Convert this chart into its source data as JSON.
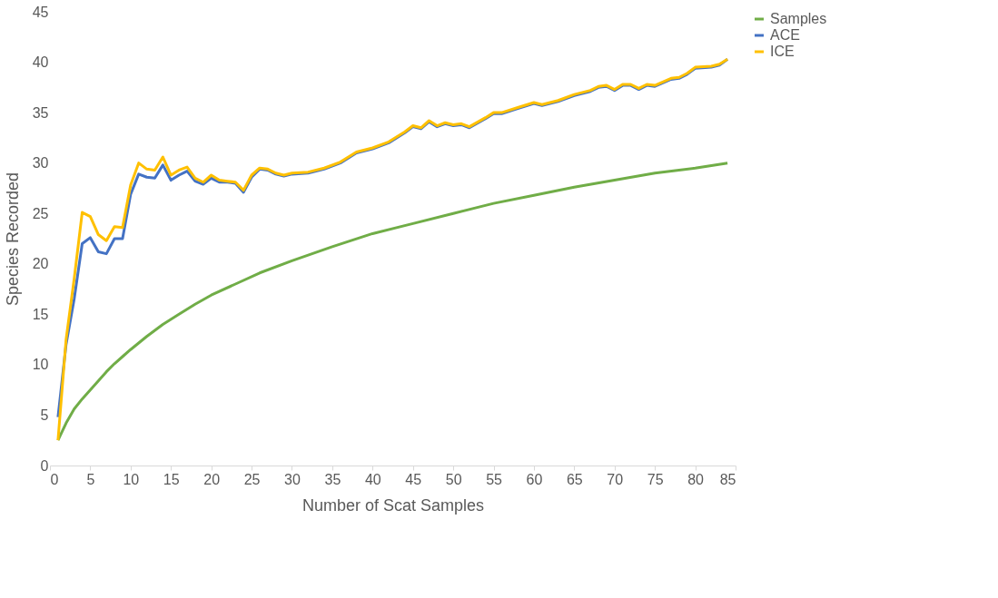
{
  "chart_data": {
    "type": "line",
    "xlabel": "Number of Scat Samples",
    "ylabel": "Species Recorded",
    "xlim": [
      0,
      85
    ],
    "ylim": [
      0,
      45
    ],
    "xticks": [
      0,
      5,
      10,
      15,
      20,
      25,
      30,
      35,
      40,
      45,
      50,
      55,
      60,
      65,
      70,
      75,
      80,
      85
    ],
    "yticks": [
      0,
      5,
      10,
      15,
      20,
      25,
      30,
      35,
      40,
      45
    ],
    "grid": false,
    "legend": "right",
    "marker": "none",
    "line_style": "solid",
    "series": [
      {
        "name": "Samples",
        "color": "#70ad47",
        "x": [
          1,
          2,
          3,
          4,
          5,
          6,
          7,
          8,
          9,
          10,
          12,
          14,
          16,
          18,
          20,
          23,
          26,
          30,
          35,
          40,
          45,
          50,
          55,
          60,
          65,
          70,
          75,
          80,
          84
        ],
        "values": [
          2.5,
          4.2,
          5.6,
          6.6,
          7.5,
          8.4,
          9.3,
          10.1,
          10.8,
          11.5,
          12.8,
          14.0,
          15.0,
          16.0,
          16.9,
          18.0,
          19.1,
          20.3,
          21.7,
          23.0,
          24.0,
          25.0,
          26.0,
          26.8,
          27.6,
          28.3,
          29.0,
          29.5,
          30.0
        ]
      },
      {
        "name": "ACE",
        "color": "#4472c4",
        "x": [
          1,
          2,
          3,
          4,
          5,
          6,
          7,
          8,
          9,
          10,
          11,
          12,
          13,
          14,
          15,
          16,
          17,
          18,
          19,
          20,
          21,
          22,
          23,
          24,
          25,
          26,
          27,
          28,
          29,
          30,
          32,
          34,
          36,
          38,
          40,
          42,
          44,
          45,
          46,
          47,
          48,
          49,
          50,
          51,
          52,
          54,
          55,
          56,
          58,
          60,
          61,
          63,
          65,
          67,
          68,
          69,
          70,
          71,
          72,
          73,
          74,
          75,
          77,
          78,
          79,
          80,
          82,
          83,
          84
        ],
        "values": [
          4.8,
          12.0,
          16.5,
          22.0,
          22.6,
          21.2,
          21.0,
          22.5,
          22.5,
          26.9,
          28.9,
          28.6,
          28.5,
          29.8,
          28.3,
          28.8,
          29.2,
          28.2,
          27.9,
          28.5,
          28.1,
          28.1,
          28.0,
          27.1,
          28.6,
          29.4,
          29.3,
          28.9,
          28.7,
          28.9,
          29.0,
          29.4,
          30.0,
          31.0,
          31.4,
          32.0,
          33.0,
          33.6,
          33.4,
          34.1,
          33.6,
          33.9,
          33.7,
          33.8,
          33.5,
          34.4,
          34.9,
          34.9,
          35.4,
          35.9,
          35.7,
          36.1,
          36.7,
          37.1,
          37.5,
          37.6,
          37.2,
          37.7,
          37.7,
          37.3,
          37.7,
          37.6,
          38.3,
          38.4,
          38.8,
          39.4,
          39.5,
          39.7,
          40.3
        ]
      },
      {
        "name": "ICE",
        "color": "#ffc000",
        "x": [
          1,
          2,
          3,
          4,
          5,
          6,
          7,
          8,
          9,
          10,
          11,
          12,
          13,
          14,
          15,
          16,
          17,
          18,
          19,
          20,
          21,
          22,
          23,
          24,
          25,
          26,
          27,
          28,
          29,
          30,
          32,
          34,
          36,
          38,
          40,
          42,
          44,
          45,
          46,
          47,
          48,
          49,
          50,
          51,
          52,
          54,
          55,
          56,
          58,
          60,
          61,
          63,
          65,
          67,
          68,
          69,
          70,
          71,
          72,
          73,
          74,
          75,
          77,
          78,
          79,
          80,
          82,
          83,
          84
        ],
        "values": [
          2.5,
          12.5,
          18.5,
          25.1,
          24.7,
          22.9,
          22.3,
          23.7,
          23.6,
          27.8,
          30.0,
          29.4,
          29.3,
          30.6,
          28.8,
          29.3,
          29.6,
          28.5,
          28.1,
          28.8,
          28.3,
          28.2,
          28.1,
          27.3,
          28.8,
          29.5,
          29.4,
          29.0,
          28.8,
          29.0,
          29.1,
          29.5,
          30.1,
          31.1,
          31.5,
          32.1,
          33.1,
          33.7,
          33.5,
          34.2,
          33.7,
          34.0,
          33.8,
          33.9,
          33.6,
          34.5,
          35.0,
          35.0,
          35.5,
          36.0,
          35.8,
          36.2,
          36.8,
          37.2,
          37.6,
          37.7,
          37.3,
          37.8,
          37.8,
          37.4,
          37.8,
          37.7,
          38.4,
          38.5,
          38.9,
          39.5,
          39.6,
          39.8,
          40.3
        ]
      }
    ]
  }
}
